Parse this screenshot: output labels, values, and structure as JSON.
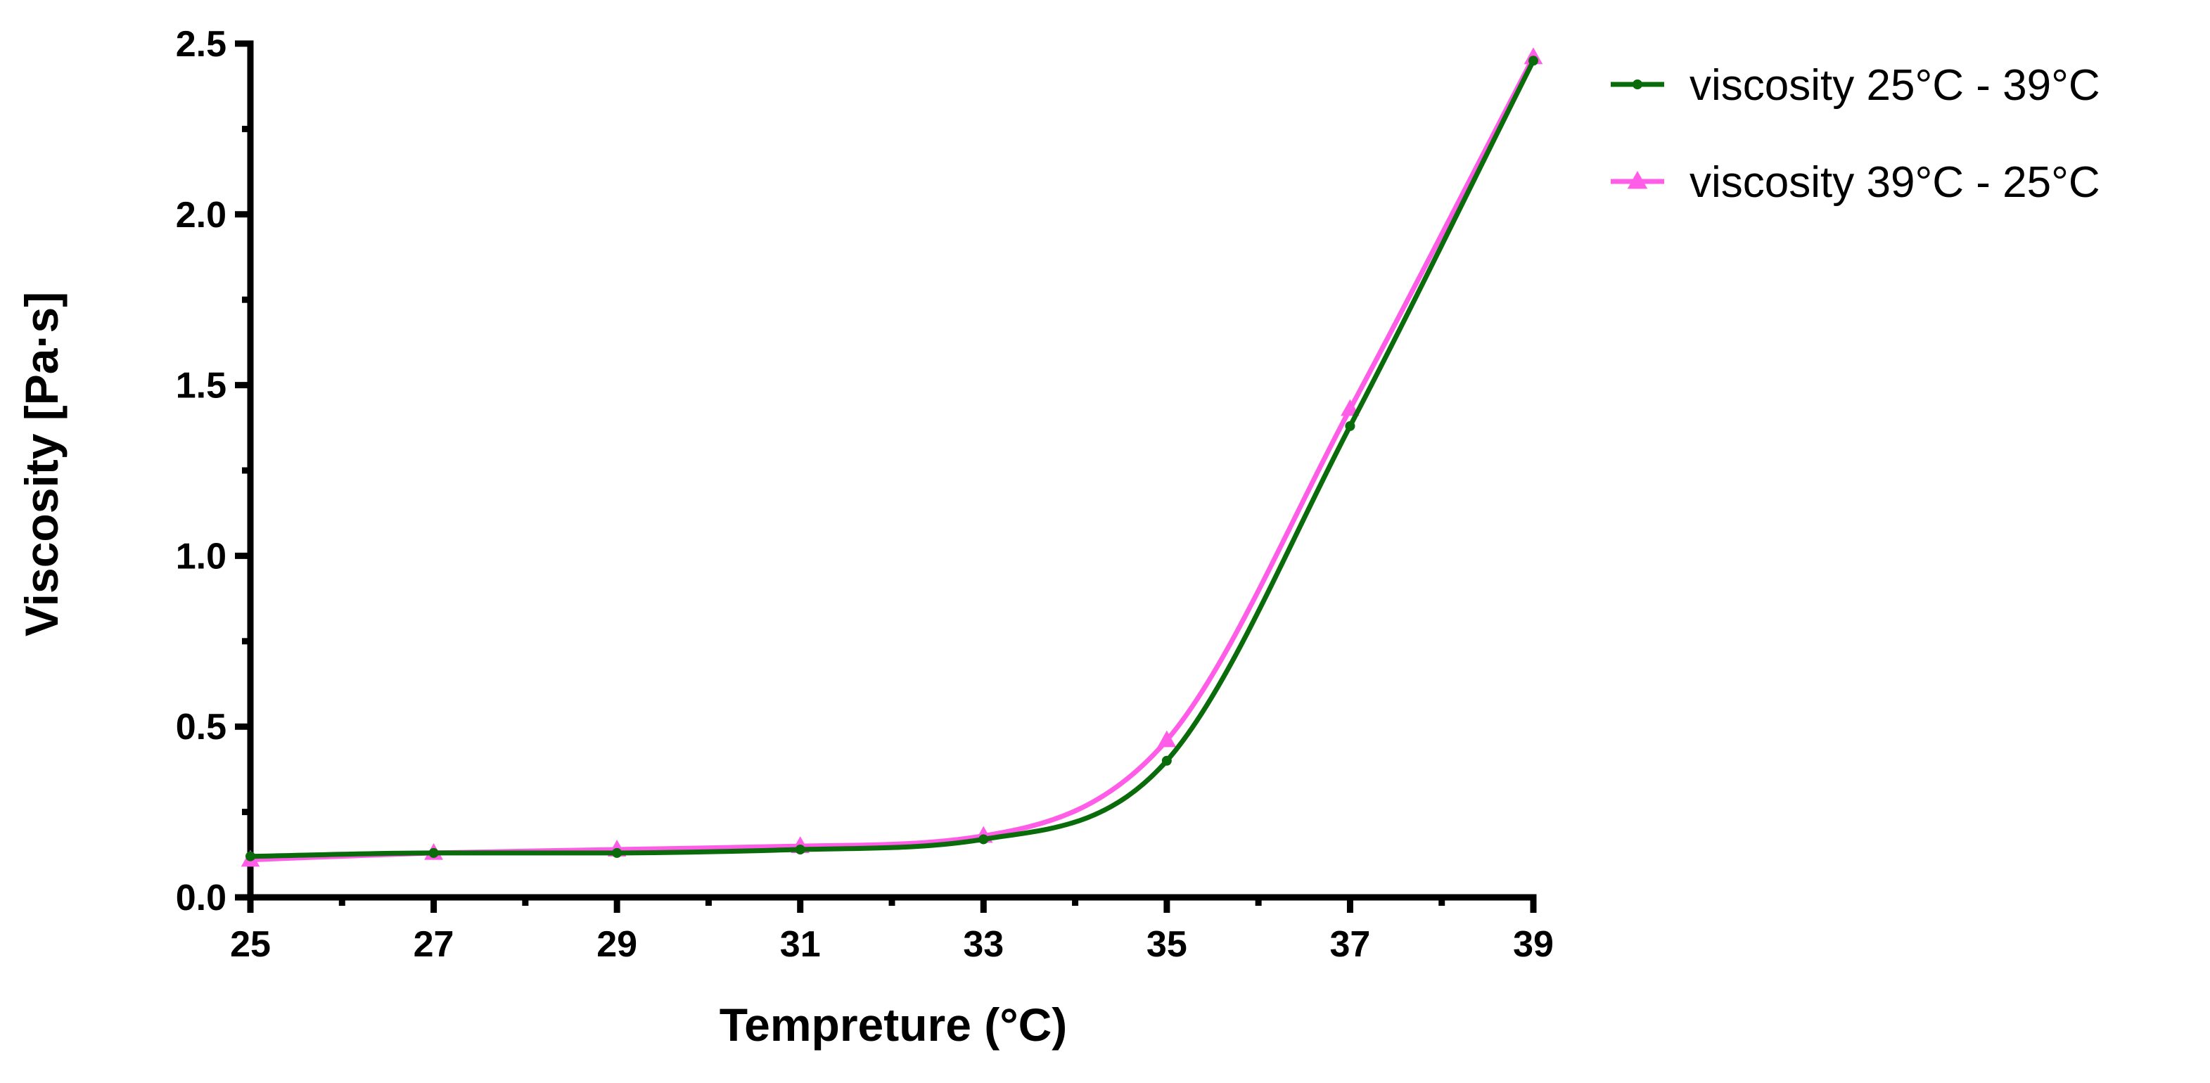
{
  "chart_data": {
    "type": "line",
    "title": "",
    "xlabel": "Tempreture (°C)",
    "ylabel": "Viscosity [Pa·s]",
    "xlim": [
      25,
      39
    ],
    "ylim": [
      0,
      2.5
    ],
    "x_ticks": [
      "25",
      "27",
      "29",
      "31",
      "33",
      "35",
      "37",
      "39"
    ],
    "y_ticks": [
      "0.0",
      "0.5",
      "1.0",
      "1.5",
      "2.0",
      "2.5"
    ],
    "legend_position": "top-right, outside plot",
    "grid": false,
    "series": [
      {
        "name": "viscosity 25°C - 39°C",
        "marker": "circle",
        "color": "#0a6b0a",
        "x": [
          25,
          27,
          29,
          31,
          33,
          35,
          37,
          39
        ],
        "values": [
          0.12,
          0.13,
          0.13,
          0.14,
          0.17,
          0.4,
          1.38,
          2.45
        ]
      },
      {
        "name": "viscosity 39°C - 25°C",
        "marker": "triangle",
        "color": "#ff5ce8",
        "x": [
          25,
          27,
          29,
          31,
          33,
          35,
          37,
          39
        ],
        "values": [
          0.11,
          0.13,
          0.14,
          0.15,
          0.18,
          0.46,
          1.43,
          2.46
        ]
      }
    ]
  }
}
